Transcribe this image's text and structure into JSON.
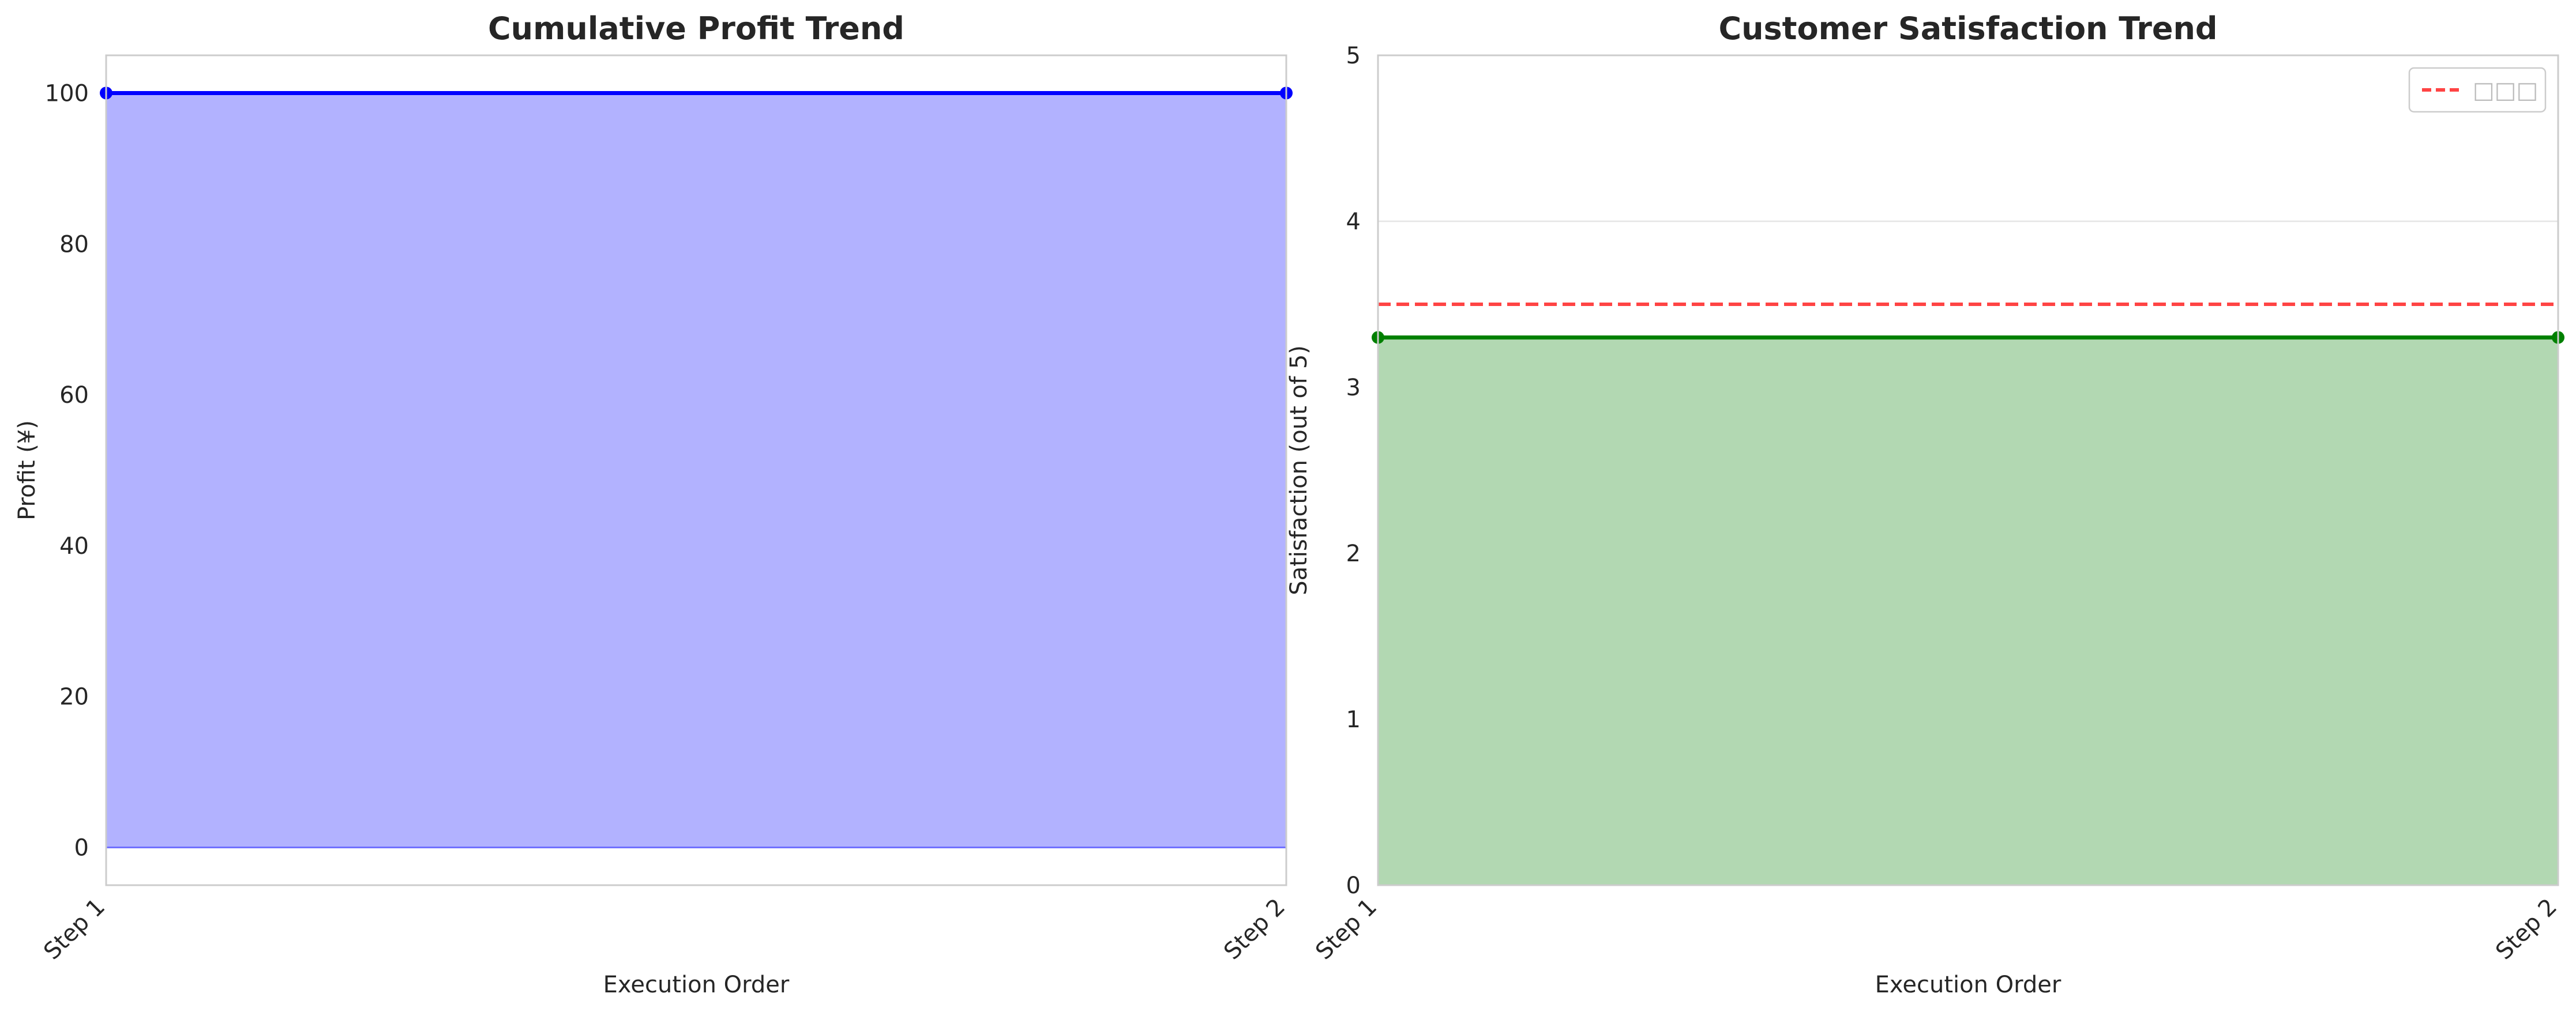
{
  "chart_data": [
    {
      "type": "area",
      "title": "Cumulative Profit Trend",
      "xlabel": "Execution Order",
      "ylabel": "Profit (¥)",
      "categories": [
        "Step 1",
        "Step 2"
      ],
      "series": [
        {
          "values": [
            100,
            100
          ],
          "color": "#0000ff",
          "fill": "#b2b2ff"
        }
      ],
      "ylim": [
        -5,
        105
      ],
      "yticks": [
        0,
        20,
        40,
        60,
        80,
        100
      ],
      "grid": true,
      "baseline": 0
    },
    {
      "type": "area",
      "title": "Customer Satisfaction Trend",
      "xlabel": "Execution Order",
      "ylabel": "Satisfaction (out of 5)",
      "categories": [
        "Step 1",
        "Step 2"
      ],
      "series": [
        {
          "values": [
            3.3,
            3.3
          ],
          "color": "#008000",
          "fill": "#b2d8b2"
        }
      ],
      "reference_line": {
        "value": 3.5,
        "color": "#ff4444",
        "style": "dashed",
        "legend_label": "□□□"
      },
      "ylim": [
        0,
        5
      ],
      "yticks": [
        0,
        1,
        2,
        3,
        4,
        5
      ],
      "grid": true,
      "legend_position": "top-right"
    }
  ]
}
